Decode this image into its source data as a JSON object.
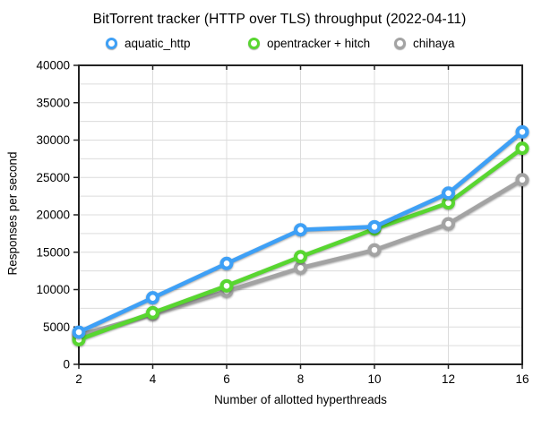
{
  "chart_data": {
    "type": "line",
    "title": "BitTorrent tracker (HTTP over TLS) throughput (2022-04-11)",
    "xlabel": "Number of allotted hyperthreads",
    "ylabel": "Responses per second",
    "categories": [
      2,
      4,
      6,
      8,
      10,
      12,
      16
    ],
    "ylim": [
      0,
      40000
    ],
    "y_major_step": 5000,
    "y_minor_step": 2500,
    "grid": true,
    "legend_position": "top",
    "series": [
      {
        "name": "aquatic_http",
        "color": "#3EA0F6",
        "values": [
          4300,
          8900,
          13500,
          18000,
          18400,
          22900,
          31100
        ]
      },
      {
        "name": "opentracker + hitch",
        "color": "#58D630",
        "values": [
          3300,
          6900,
          10500,
          14400,
          18100,
          21600,
          28900
        ]
      },
      {
        "name": "chihaya",
        "color": "#A3A3A3",
        "values": [
          3900,
          6700,
          9800,
          12900,
          15300,
          18800,
          24700
        ]
      }
    ],
    "colors": {
      "axis": "#222222",
      "gridline": "#DCDCDC",
      "text": "#000000"
    }
  },
  "legend_x_positions": [
    118,
    277,
    440
  ]
}
